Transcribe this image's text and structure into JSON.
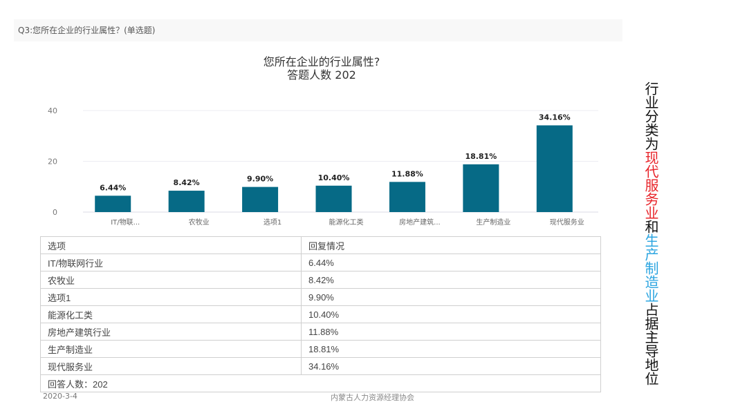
{
  "question": "Q3:您所在企业的行业属性？(单选题)",
  "chart_data": {
    "type": "bar",
    "title": "您所在企业的行业属性?",
    "subtitle": "答题人数 202",
    "categories": [
      "IT/物联...",
      "农牧业",
      "选项1",
      "能源化工类",
      "房地产建筑...",
      "生产制造业",
      "现代服务业"
    ],
    "values": [
      6.44,
      8.42,
      9.9,
      10.4,
      11.88,
      18.81,
      34.16
    ],
    "data_labels": [
      "6.44%",
      "8.42%",
      "9.90%",
      "10.40%",
      "11.88%",
      "18.81%",
      "34.16%"
    ],
    "y_ticks": [
      "0",
      "20",
      "40"
    ],
    "ylim": [
      0,
      40
    ],
    "xlabel": "",
    "ylabel": "",
    "grid": true,
    "bar_color": "#066a86"
  },
  "table": {
    "headers": [
      "选项",
      "回复情况"
    ],
    "rows": [
      [
        "IT/物联网行业",
        "6.44%"
      ],
      [
        "农牧业",
        "8.42%"
      ],
      [
        "选项1",
        "9.90%"
      ],
      [
        "能源化工类",
        "10.40%"
      ],
      [
        "房地产建筑行业",
        "11.88%"
      ],
      [
        "生产制造业",
        "18.81%"
      ],
      [
        "现代服务业",
        "34.16%"
      ]
    ],
    "footer": "回答人数：202"
  },
  "footer": {
    "date": "2020-3-4",
    "org": "内蒙古人力资源经理协会"
  },
  "note": {
    "part1": "行业分类为",
    "part2": "现代服务业",
    "part3": "和",
    "part4": "生产制造业",
    "part5": "占据主导地位",
    "highlight_red": "#e8242a",
    "highlight_blue": "#2aa4e0"
  }
}
